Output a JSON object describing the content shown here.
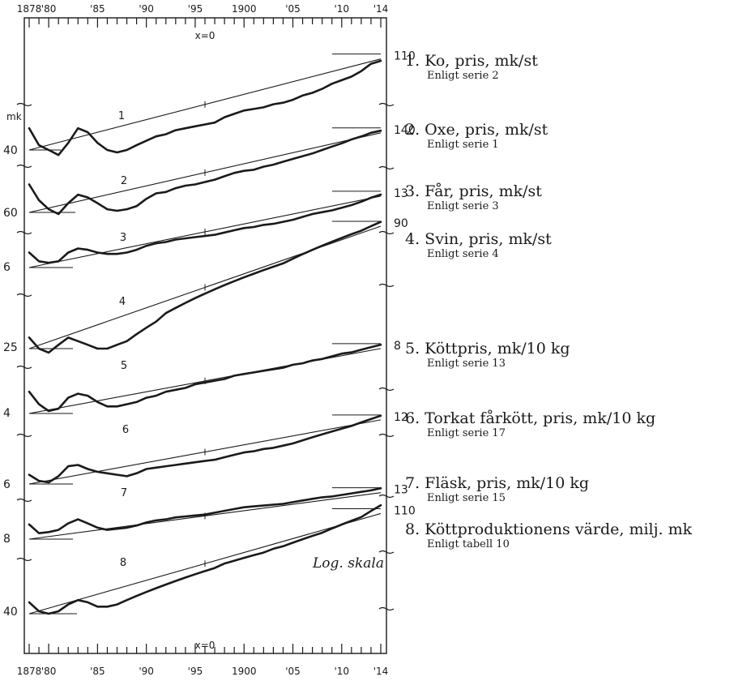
{
  "chart_data": {
    "type": "line",
    "scale": "log",
    "x_range": [
      1878,
      1914
    ],
    "x_ticks_top": [
      "1878",
      "'80",
      "'85",
      "'90",
      "'95",
      "1900",
      "'05",
      "'10",
      "'14"
    ],
    "x_ticks_bottom": [
      "1878",
      "'80",
      "'85",
      "'90",
      "'95",
      "1900",
      "'05",
      "'10",
      "'14"
    ],
    "x_zero_label": "x=0",
    "unit_label": "mk",
    "note": "Log. skala",
    "series": [
      {
        "name": "1",
        "legend": "Ko, pris, mk/st",
        "source": "Enligt serie 2",
        "left_value": "40",
        "right_value": "110",
        "x": [
          1878,
          1879,
          1880,
          1881,
          1882,
          1883,
          1884,
          1885,
          1886,
          1887,
          1888,
          1889,
          1890,
          1891,
          1892,
          1893,
          1894,
          1895,
          1896,
          1897,
          1898,
          1899,
          1900,
          1901,
          1902,
          1903,
          1904,
          1905,
          1906,
          1907,
          1908,
          1909,
          1910,
          1911,
          1912,
          1913,
          1914
        ],
        "values": [
          50,
          42,
          40,
          38,
          43,
          50,
          48,
          43,
          40,
          39,
          40,
          42,
          44,
          46,
          47,
          49,
          50,
          51,
          52,
          53,
          56,
          58,
          60,
          61,
          62,
          64,
          65,
          67,
          70,
          72,
          75,
          79,
          82,
          85,
          90,
          97,
          100
        ],
        "trend": [
          40,
          102
        ]
      },
      {
        "name": "2",
        "legend": "Oxe, pris, mk/st",
        "source": "Enligt serie 1",
        "left_value": "60",
        "right_value": "140",
        "x": [
          1878,
          1879,
          1880,
          1881,
          1882,
          1883,
          1884,
          1885,
          1886,
          1887,
          1888,
          1889,
          1890,
          1891,
          1892,
          1893,
          1894,
          1895,
          1896,
          1897,
          1898,
          1899,
          1900,
          1901,
          1902,
          1903,
          1904,
          1905,
          1906,
          1907,
          1908,
          1909,
          1910,
          1911,
          1912,
          1913,
          1914
        ],
        "values": [
          80,
          68,
          62,
          59,
          66,
          72,
          70,
          66,
          62,
          61,
          62,
          64,
          69,
          73,
          74,
          77,
          79,
          80,
          82,
          84,
          87,
          90,
          92,
          93,
          96,
          98,
          101,
          104,
          107,
          110,
          114,
          118,
          122,
          127,
          131,
          136,
          139
        ],
        "trend": [
          60,
          136
        ]
      },
      {
        "name": "3",
        "legend": "Får, pris, mk/st",
        "source": "Enligt serie 3",
        "left_value": "6",
        "right_value": "13",
        "x": [
          1878,
          1879,
          1880,
          1881,
          1882,
          1883,
          1884,
          1885,
          1886,
          1887,
          1888,
          1889,
          1890,
          1891,
          1892,
          1893,
          1894,
          1895,
          1896,
          1897,
          1898,
          1899,
          1900,
          1901,
          1902,
          1903,
          1904,
          1905,
          1906,
          1907,
          1908,
          1909,
          1910,
          1911,
          1912,
          1913,
          1914
        ],
        "values": [
          7.0,
          6.4,
          6.3,
          6.4,
          7.0,
          7.3,
          7.2,
          7.0,
          6.9,
          6.9,
          7.0,
          7.2,
          7.5,
          7.7,
          7.8,
          8.0,
          8.1,
          8.2,
          8.3,
          8.4,
          8.6,
          8.8,
          9.0,
          9.1,
          9.3,
          9.4,
          9.6,
          9.8,
          10.1,
          10.4,
          10.6,
          10.8,
          11.1,
          11.4,
          11.8,
          12.3,
          12.7
        ],
        "trend": [
          6,
          12.5
        ]
      },
      {
        "name": "4",
        "legend": "Svin, pris, mk/st",
        "source": "Enligt serie 4",
        "left_value": "25",
        "right_value": "90",
        "x": [
          1878,
          1879,
          1880,
          1881,
          1882,
          1883,
          1884,
          1885,
          1886,
          1887,
          1888,
          1889,
          1890,
          1891,
          1892,
          1893,
          1894,
          1895,
          1896,
          1897,
          1898,
          1899,
          1900,
          1901,
          1902,
          1903,
          1904,
          1905,
          1906,
          1907,
          1908,
          1909,
          1910,
          1911,
          1912,
          1913,
          1914
        ],
        "values": [
          28,
          25,
          24,
          26,
          28,
          27,
          26,
          25,
          25,
          26,
          27,
          29,
          31,
          33,
          36,
          38,
          40,
          42,
          44,
          46,
          48,
          50,
          52,
          54,
          56,
          58,
          60,
          63,
          66,
          69,
          72,
          75,
          78,
          81,
          84,
          88,
          92
        ],
        "trend": [
          25,
          88
        ]
      },
      {
        "name": "5",
        "legend": "Köttpris, mk/10 kg",
        "source": "Enligt serie 13",
        "left_value": "4",
        "right_value": "8",
        "x": [
          1878,
          1879,
          1880,
          1881,
          1882,
          1883,
          1884,
          1885,
          1886,
          1887,
          1888,
          1889,
          1890,
          1891,
          1892,
          1893,
          1894,
          1895,
          1896,
          1897,
          1898,
          1899,
          1900,
          1901,
          1902,
          1903,
          1904,
          1905,
          1906,
          1907,
          1908,
          1909,
          1910,
          1911,
          1912,
          1913,
          1914
        ],
        "values": [
          5.0,
          4.4,
          4.1,
          4.2,
          4.7,
          4.9,
          4.8,
          4.5,
          4.3,
          4.3,
          4.4,
          4.5,
          4.7,
          4.8,
          5.0,
          5.1,
          5.2,
          5.4,
          5.5,
          5.6,
          5.7,
          5.9,
          6.0,
          6.1,
          6.2,
          6.3,
          6.4,
          6.6,
          6.7,
          6.9,
          7.0,
          7.2,
          7.4,
          7.5,
          7.7,
          7.9,
          8.1
        ],
        "trend": [
          4,
          7.8
        ]
      },
      {
        "name": "6",
        "legend": "Torkat fårkött, pris, mk/10 kg",
        "source": "Enligt serie 17",
        "left_value": "6",
        "right_value": "12",
        "x": [
          1878,
          1879,
          1880,
          1881,
          1882,
          1883,
          1884,
          1885,
          1886,
          1887,
          1888,
          1889,
          1890,
          1891,
          1892,
          1893,
          1894,
          1895,
          1896,
          1897,
          1898,
          1899,
          1900,
          1901,
          1902,
          1903,
          1904,
          1905,
          1906,
          1907,
          1908,
          1909,
          1910,
          1911,
          1912,
          1913,
          1914
        ],
        "values": [
          6.6,
          6.2,
          6.1,
          6.5,
          7.2,
          7.3,
          7.0,
          6.8,
          6.7,
          6.6,
          6.5,
          6.7,
          7.0,
          7.1,
          7.2,
          7.3,
          7.4,
          7.5,
          7.6,
          7.7,
          7.9,
          8.1,
          8.3,
          8.4,
          8.6,
          8.7,
          8.9,
          9.1,
          9.4,
          9.7,
          10.0,
          10.3,
          10.6,
          10.9,
          11.3,
          11.7,
          12.1
        ],
        "trend": [
          6,
          11.6
        ]
      },
      {
        "name": "7",
        "legend": "Fläsk, pris, mk/10 kg",
        "source": "Enligt serie 15",
        "left_value": "8",
        "right_value": "13",
        "x": [
          1878,
          1879,
          1880,
          1881,
          1882,
          1883,
          1884,
          1885,
          1886,
          1887,
          1888,
          1889,
          1890,
          1891,
          1892,
          1893,
          1894,
          1895,
          1896,
          1897,
          1898,
          1899,
          1900,
          1901,
          1902,
          1903,
          1904,
          1905,
          1906,
          1907,
          1908,
          1909,
          1910,
          1911,
          1912,
          1913,
          1914
        ],
        "values": [
          9.3,
          8.5,
          8.6,
          8.8,
          9.4,
          9.8,
          9.4,
          9.0,
          8.8,
          8.9,
          9.0,
          9.2,
          9.5,
          9.7,
          9.8,
          10.0,
          10.1,
          10.2,
          10.3,
          10.5,
          10.7,
          10.9,
          11.1,
          11.2,
          11.3,
          11.4,
          11.5,
          11.7,
          11.9,
          12.1,
          12.3,
          12.4,
          12.6,
          12.8,
          13.0,
          13.2,
          13.5
        ],
        "trend": [
          8,
          12.9
        ]
      },
      {
        "name": "8",
        "legend": "Köttproduktionens värde, milj. mk",
        "source": "Enligt tabell 10",
        "left_value": "40",
        "right_value": "110",
        "x": [
          1878,
          1879,
          1880,
          1881,
          1882,
          1883,
          1884,
          1885,
          1886,
          1887,
          1888,
          1889,
          1890,
          1891,
          1892,
          1893,
          1894,
          1895,
          1896,
          1897,
          1898,
          1899,
          1900,
          1901,
          1902,
          1903,
          1904,
          1905,
          1906,
          1907,
          1908,
          1909,
          1910,
          1911,
          1912,
          1913,
          1914
        ],
        "values": [
          45,
          41,
          40,
          41,
          44,
          46,
          45,
          43,
          43,
          44,
          46,
          48,
          50,
          52,
          54,
          56,
          58,
          60,
          62,
          64,
          67,
          69,
          71,
          73,
          75,
          78,
          80,
          83,
          86,
          89,
          92,
          96,
          100,
          104,
          108,
          115,
          122
        ],
        "trend": [
          40,
          112
        ]
      }
    ]
  }
}
